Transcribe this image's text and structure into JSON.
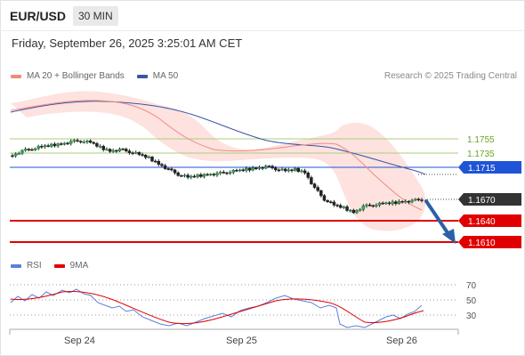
{
  "header": {
    "pair": "EUR/USD",
    "timeframe": "30 MIN",
    "datetime": "Friday, September 26, 2025 3:25:01 AM CET"
  },
  "legend": {
    "ma20": "MA 20 + Bollinger Bands",
    "ma50": "MA 50",
    "ma20_color": "#f08a80",
    "ma50_color": "#3b55a8",
    "copyright": "Research © 2025 Trading Central"
  },
  "levels": {
    "r2": "1.1755",
    "r1": "1.1735",
    "pivot": "1.1715",
    "last": "1.1670",
    "s1": "1.1640",
    "s2": "1.1610",
    "resistance_color": "#6aa326",
    "pivot_color": "#1f54d6",
    "support_color": "#e00000",
    "last_color": "#333333"
  },
  "rsi_legend": {
    "rsi": "RSI",
    "ma9": "9MA",
    "rsi_color": "#5b7fdc",
    "ma9_color": "#e00000"
  },
  "rsi_axis": [
    "70",
    "50",
    "30"
  ],
  "x_axis": [
    "Sep 24",
    "Sep 25",
    "Sep 26"
  ],
  "forecast": {
    "direction": "down",
    "arrow_color": "#2d5fa8"
  },
  "chart_data": {
    "type": "candlestick",
    "close_series": [
      1.1732,
      1.1738,
      1.1741,
      1.1744,
      1.1746,
      1.1748,
      1.1751,
      1.1752,
      1.175,
      1.1743,
      1.1738,
      1.174,
      1.1737,
      1.1733,
      1.1728,
      1.172,
      1.1712,
      1.1705,
      1.1701,
      1.1703,
      1.1705,
      1.1706,
      1.1708,
      1.171,
      1.1712,
      1.1714,
      1.1716,
      1.1713,
      1.171,
      1.1712,
      1.1708,
      1.1686,
      1.167,
      1.1662,
      1.1658,
      1.1652,
      1.166,
      1.1662,
      1.1664,
      1.1665,
      1.1667,
      1.1668,
      1.167
    ],
    "resistance": [
      1.1755,
      1.1735
    ],
    "pivot": 1.1715,
    "support": [
      1.164,
      1.161
    ],
    "last_price": 1.167,
    "rsi_levels": [
      70,
      50,
      30
    ],
    "x_labels": [
      "Sep 24",
      "Sep 25",
      "Sep 26"
    ]
  }
}
